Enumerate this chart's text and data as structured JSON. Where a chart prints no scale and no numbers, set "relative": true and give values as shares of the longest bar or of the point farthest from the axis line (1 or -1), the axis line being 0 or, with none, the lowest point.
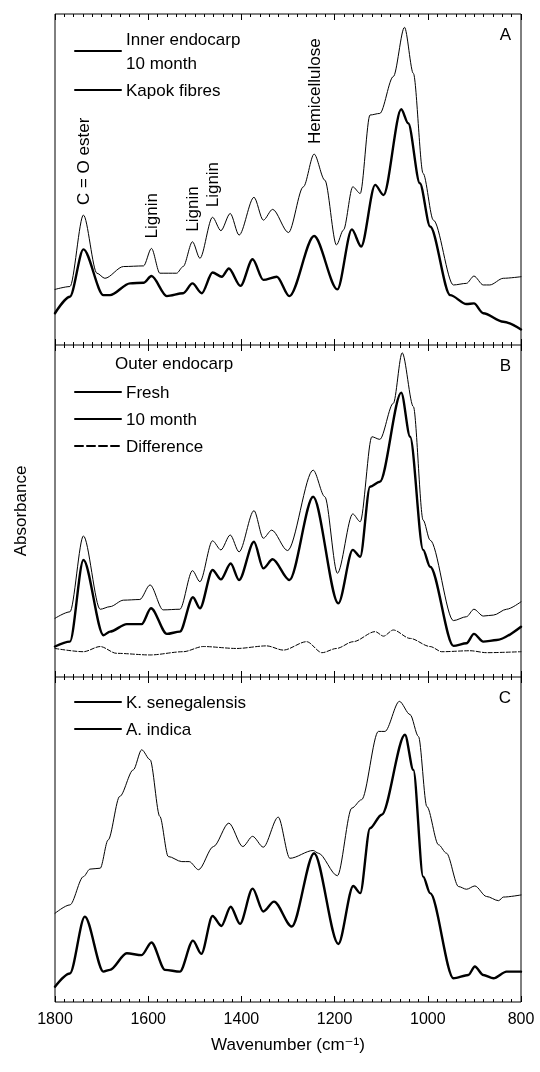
{
  "chart_data": [
    {
      "type": "line",
      "relative": true,
      "xlim": [
        1800,
        800
      ],
      "xticks": [
        1800,
        1600,
        1400,
        1200,
        1000,
        800
      ],
      "tick_labels": false,
      "legend": "top left",
      "annotations": [
        "A",
        {
          "text": "C = O ester",
          "x": 1739,
          "y": 0.409
        },
        {
          "text": "Lignin",
          "x": 1593,
          "y": 0.304
        },
        {
          "text": "Lignin",
          "x": 1505,
          "y": 0.325
        },
        {
          "text": "Lignin",
          "x": 1462,
          "y": 0.402
        },
        {
          "text": "Hemicellulose",
          "x": 1244,
          "y": 0.601
        }
      ],
      "series": [
        {
          "name": "Inner endocarp\n10 month",
          "color": "#000000",
          "x": [
            1800,
            1768,
            1739,
            1710,
            1693,
            1653,
            1610,
            1593,
            1575,
            1539,
            1525,
            1505,
            1489,
            1462,
            1444,
            1424,
            1405,
            1373,
            1353,
            1333,
            1299,
            1267,
            1244,
            1221,
            1196,
            1181,
            1161,
            1145,
            1124,
            1103,
            1074,
            1050,
            1031,
            1010,
            988,
            945,
            917,
            901,
            881,
            867,
            838,
            800
          ],
          "values": [
            0.175,
            0.184,
            0.409,
            0.226,
            0.21,
            0.247,
            0.249,
            0.304,
            0.226,
            0.226,
            0.247,
            0.325,
            0.273,
            0.402,
            0.36,
            0.414,
            0.346,
            0.465,
            0.393,
            0.427,
            0.354,
            0.498,
            0.601,
            0.519,
            0.315,
            0.362,
            0.498,
            0.477,
            0.724,
            0.729,
            0.845,
            1.0,
            0.855,
            0.54,
            0.393,
            0.189,
            0.194,
            0.217,
            0.189,
            0.189,
            0.21,
            0.215
          ]
        },
        {
          "name": "Kapok fibres",
          "color": "#000000",
          "x": [
            1800,
            1768,
            1739,
            1696,
            1682,
            1639,
            1610,
            1593,
            1560,
            1525,
            1505,
            1485,
            1462,
            1442,
            1427,
            1402,
            1376,
            1353,
            1324,
            1297,
            1244,
            1194,
            1163,
            1143,
            1113,
            1095,
            1057,
            1042,
            1017,
            995,
            952,
            917,
            901,
            881,
            838,
            800
          ],
          "values": [
            0.1,
            0.152,
            0.301,
            0.157,
            0.157,
            0.194,
            0.196,
            0.217,
            0.154,
            0.163,
            0.194,
            0.163,
            0.228,
            0.215,
            0.241,
            0.186,
            0.27,
            0.205,
            0.215,
            0.154,
            0.343,
            0.175,
            0.364,
            0.31,
            0.504,
            0.472,
            0.742,
            0.698,
            0.509,
            0.373,
            0.157,
            0.129,
            0.131,
            0.1,
            0.073,
            0.049
          ]
        }
      ]
    },
    {
      "type": "line",
      "relative": true,
      "xlim": [
        1800,
        800
      ],
      "xticks": [
        1800,
        1600,
        1400,
        1200,
        1000,
        800
      ],
      "tick_labels": false,
      "legend": "top left",
      "legend_title": "Outer endocarp",
      "ylabel": "Absorbance",
      "annotations": [
        "B"
      ],
      "series": [
        {
          "name": "Fresh",
          "color": "#000000",
          "x": [
            1800,
            1768,
            1739,
            1703,
            1682,
            1653,
            1618,
            1596,
            1568,
            1532,
            1505,
            1489,
            1462,
            1444,
            1424,
            1405,
            1373,
            1353,
            1335,
            1301,
            1246,
            1221,
            1194,
            1161,
            1145,
            1120,
            1103,
            1074,
            1055,
            1031,
            1010,
            995,
            945,
            917,
            901,
            881,
            859,
            831,
            800
          ],
          "values": [
            0.181,
            0.201,
            0.435,
            0.209,
            0.217,
            0.237,
            0.239,
            0.284,
            0.207,
            0.209,
            0.328,
            0.294,
            0.42,
            0.392,
            0.438,
            0.386,
            0.513,
            0.428,
            0.453,
            0.39,
            0.638,
            0.556,
            0.32,
            0.503,
            0.479,
            0.741,
            0.733,
            0.844,
            1.0,
            0.834,
            0.484,
            0.422,
            0.174,
            0.186,
            0.209,
            0.188,
            0.191,
            0.209,
            0.232
          ]
        },
        {
          "name": "10 month",
          "color": "#000000",
          "x": [
            1800,
            1768,
            1739,
            1696,
            1682,
            1646,
            1614,
            1594,
            1560,
            1532,
            1504,
            1489,
            1462,
            1444,
            1423,
            1405,
            1373,
            1353,
            1333,
            1297,
            1246,
            1192,
            1161,
            1145,
            1124,
            1103,
            1057,
            1038,
            1010,
            995,
            945,
            917,
            901,
            881,
            852,
            800
          ],
          "values": [
            0.094,
            0.109,
            0.361,
            0.129,
            0.14,
            0.163,
            0.163,
            0.212,
            0.133,
            0.14,
            0.246,
            0.212,
            0.33,
            0.301,
            0.35,
            0.299,
            0.417,
            0.335,
            0.363,
            0.299,
            0.556,
            0.227,
            0.392,
            0.371,
            0.587,
            0.602,
            0.877,
            0.741,
            0.392,
            0.34,
            0.096,
            0.104,
            0.133,
            0.109,
            0.114,
            0.155
          ]
        },
        {
          "name": "Difference",
          "color": "#000000",
          "line_style": "dashed",
          "x": [
            1800,
            1739,
            1703,
            1668,
            1596,
            1525,
            1482,
            1410,
            1346,
            1310,
            1260,
            1227,
            1196,
            1160,
            1113,
            1095,
            1074,
            1038,
            995,
            970,
            909,
            874,
            800
          ],
          "values": [
            0.088,
            0.078,
            0.094,
            0.073,
            0.068,
            0.078,
            0.094,
            0.088,
            0.096,
            0.083,
            0.109,
            0.075,
            0.088,
            0.109,
            0.14,
            0.126,
            0.145,
            0.119,
            0.094,
            0.078,
            0.081,
            0.075,
            0.078
          ]
        }
      ]
    },
    {
      "type": "line",
      "relative": true,
      "xlim": [
        1800,
        800
      ],
      "xticks": [
        1800,
        1600,
        1400,
        1200,
        1000,
        800
      ],
      "tick_labels": "x",
      "legend": "top left",
      "xlabel": "Wavenumber (cm⁻¹)",
      "annotations": [
        "C"
      ],
      "series": [
        {
          "name": "K. senegalensis",
          "color": "#000000",
          "x": [
            1800,
            1768,
            1739,
            1725,
            1703,
            1686,
            1661,
            1632,
            1614,
            1596,
            1575,
            1557,
            1528,
            1512,
            1492,
            1460,
            1427,
            1397,
            1376,
            1353,
            1321,
            1296,
            1246,
            1235,
            1194,
            1163,
            1142,
            1106,
            1092,
            1061,
            1038,
            1020,
            1002,
            977,
            960,
            934,
            917,
            899,
            874,
            848,
            838,
            800
          ],
          "values": [
            0.295,
            0.323,
            0.417,
            0.442,
            0.445,
            0.539,
            0.684,
            0.772,
            0.839,
            0.806,
            0.617,
            0.484,
            0.467,
            0.467,
            0.44,
            0.517,
            0.595,
            0.517,
            0.551,
            0.515,
            0.615,
            0.478,
            0.504,
            0.495,
            0.42,
            0.645,
            0.673,
            0.9,
            0.9,
            1.0,
            0.956,
            0.883,
            0.65,
            0.523,
            0.495,
            0.384,
            0.375,
            0.386,
            0.351,
            0.337,
            0.349,
            0.356
          ]
        },
        {
          "name": "A. indica",
          "color": "#000000",
          "x": [
            1800,
            1768,
            1736,
            1696,
            1682,
            1646,
            1614,
            1593,
            1564,
            1532,
            1504,
            1486,
            1462,
            1443,
            1423,
            1403,
            1376,
            1353,
            1330,
            1292,
            1244,
            1192,
            1160,
            1145,
            1124,
            1099,
            1049,
            1031,
            1010,
            995,
            945,
            913,
            899,
            881,
            859,
            831,
            800
          ],
          "values": [
            0.051,
            0.095,
            0.284,
            0.101,
            0.107,
            0.162,
            0.156,
            0.198,
            0.107,
            0.101,
            0.204,
            0.16,
            0.286,
            0.253,
            0.317,
            0.26,
            0.377,
            0.301,
            0.334,
            0.251,
            0.495,
            0.193,
            0.386,
            0.362,
            0.578,
            0.623,
            0.889,
            0.772,
            0.417,
            0.362,
            0.079,
            0.09,
            0.118,
            0.09,
            0.079,
            0.101,
            0.101
          ]
        }
      ]
    }
  ]
}
